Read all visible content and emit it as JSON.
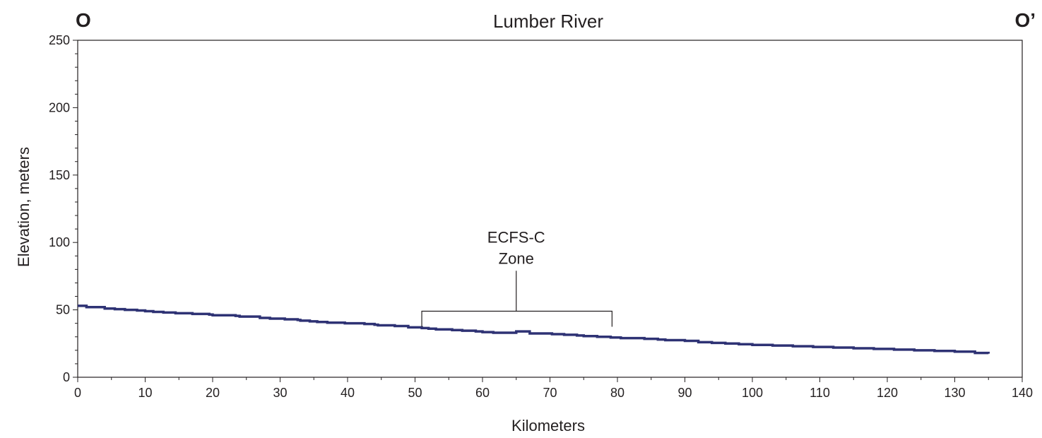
{
  "chart_data": {
    "type": "line",
    "title": "Lumber River",
    "left_marker": "O",
    "right_marker": "O’",
    "xlabel": "Kilometers",
    "ylabel": "Elevation, meters",
    "xlim": [
      0,
      140
    ],
    "ylim": [
      0,
      250
    ],
    "x_ticks": [
      "0",
      "10",
      "20",
      "30",
      "40",
      "50",
      "60",
      "70",
      "80",
      "90",
      "100",
      "110",
      "120",
      "130",
      "140"
    ],
    "y_ticks": [
      "0",
      "50",
      "100",
      "150",
      "200",
      "250"
    ],
    "grid": false,
    "line_color": "#2e3274",
    "series": [
      {
        "step": true,
        "x": [
          0,
          1.3,
          4,
          5.5,
          7,
          8.8,
          10,
          11.2,
          12.7,
          14.5,
          17,
          19.5,
          20,
          20.3,
          23.4,
          24,
          25.7,
          27,
          28.5,
          30.7,
          32.6,
          33,
          34.4,
          35.5,
          37,
          39.6,
          42.5,
          44,
          44.5,
          47,
          49,
          51,
          52,
          53.1,
          55.5,
          57,
          59,
          60,
          61.6,
          63,
          65,
          67,
          70.3,
          72.1,
          74,
          75,
          77,
          79,
          80,
          80.5,
          82,
          84,
          86,
          87.1,
          90,
          92,
          94,
          96,
          98,
          100,
          103,
          106,
          109,
          112,
          115,
          118,
          121,
          124,
          127,
          130,
          133,
          135
        ],
        "y": [
          53,
          52,
          51,
          50.5,
          50,
          49.5,
          49,
          48.5,
          48,
          47.5,
          47,
          46.5,
          46,
          46,
          45.5,
          45,
          45,
          44,
          43.5,
          43,
          42.5,
          42,
          41.5,
          41,
          40.5,
          40,
          39.5,
          39,
          38.5,
          38,
          37,
          36.5,
          36,
          35.5,
          35,
          34.5,
          34,
          33.5,
          33,
          33,
          34,
          32.5,
          32,
          31.5,
          31,
          30.5,
          30,
          29.5,
          29.5,
          29,
          29,
          28.5,
          28,
          27.5,
          27,
          26,
          25.5,
          25,
          24.5,
          24,
          23.5,
          23,
          22.5,
          22,
          21.5,
          21,
          20.5,
          20,
          19.5,
          19,
          18,
          17.5
        ]
      }
    ],
    "annotations": [
      {
        "text_lines": [
          "ECFS-C",
          "Zone"
        ],
        "x_start": 51,
        "x_end": 79.2,
        "bracket_y": 49,
        "tip_y": 37.5,
        "stem_x": 65,
        "stem_top_y": 79
      }
    ]
  }
}
